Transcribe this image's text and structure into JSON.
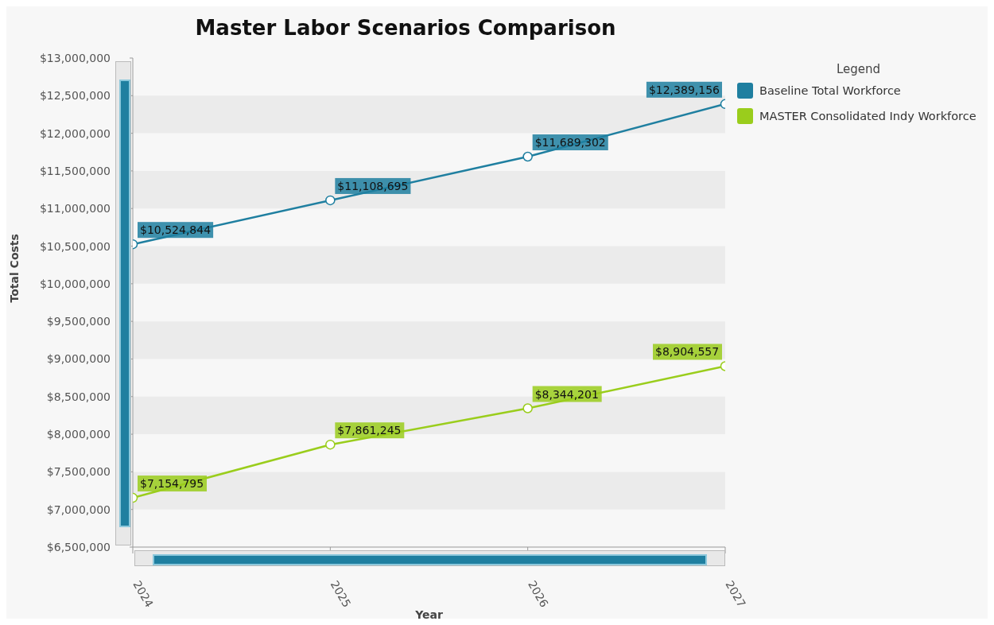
{
  "chart_data": {
    "type": "line",
    "title": "Master Labor Scenarios Comparison",
    "xlabel": "Year",
    "ylabel": "Total Costs",
    "legend_title": "Legend",
    "x": [
      2024,
      2025,
      2026,
      2027
    ],
    "xlim": [
      2024,
      2027
    ],
    "xticks": [
      2024,
      2025,
      2026,
      2027
    ],
    "ylim": [
      6500000,
      13000000
    ],
    "yticks": [
      {
        "value": 6500000,
        "label": "$6,500,000"
      },
      {
        "value": 7000000,
        "label": "$7,000,000"
      },
      {
        "value": 7500000,
        "label": "$7,500,000"
      },
      {
        "value": 8000000,
        "label": "$8,000,000"
      },
      {
        "value": 8500000,
        "label": "$8,500,000"
      },
      {
        "value": 9000000,
        "label": "$9,000,000"
      },
      {
        "value": 9500000,
        "label": "$9,500,000"
      },
      {
        "value": 10000000,
        "label": "$10,000,000"
      },
      {
        "value": 10500000,
        "label": "$10,500,000"
      },
      {
        "value": 11000000,
        "label": "$11,000,000"
      },
      {
        "value": 11500000,
        "label": "$11,500,000"
      },
      {
        "value": 12000000,
        "label": "$12,000,000"
      },
      {
        "value": 12500000,
        "label": "$12,500,000"
      },
      {
        "value": 13000000,
        "label": "$13,000,000"
      }
    ],
    "series": [
      {
        "name": "Baseline Total Workforce",
        "color": "#1f7fa0",
        "values": [
          10524844,
          11108695,
          11689302,
          12389156
        ],
        "value_labels": [
          "$10,524,844",
          "$11,108,695",
          "$11,689,302",
          "$12,389,156"
        ]
      },
      {
        "name": "MASTER Consolidated Indy Workforce",
        "color": "#9acd1c",
        "values": [
          7154795,
          7861245,
          8344201,
          8904557
        ],
        "value_labels": [
          "$7,154,795",
          "$7,861,245",
          "$8,344,201",
          "$8,904,557"
        ]
      }
    ],
    "bands": [
      {
        "axis": "y",
        "from": 7000000,
        "to": 7500000,
        "color": "#ebebeb"
      },
      {
        "axis": "y",
        "from": 8000000,
        "to": 8500000,
        "color": "#ebebeb"
      },
      {
        "axis": "y",
        "from": 9000000,
        "to": 9500000,
        "color": "#ebebeb"
      },
      {
        "axis": "y",
        "from": 10000000,
        "to": 10500000,
        "color": "#ebebeb"
      },
      {
        "axis": "y",
        "from": 11000000,
        "to": 11500000,
        "color": "#ebebeb"
      },
      {
        "axis": "y",
        "from": 12000000,
        "to": 12500000,
        "color": "#ebebeb"
      }
    ],
    "legend": "top right",
    "marker": "circle",
    "line_style": "solid"
  }
}
